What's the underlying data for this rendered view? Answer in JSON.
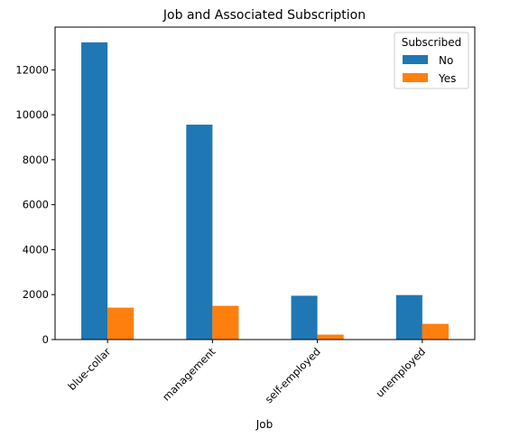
{
  "chart_data": {
    "type": "bar",
    "title": "Job and Associated Subscription",
    "xlabel": "Job",
    "ylabel": "",
    "categories": [
      "blue-collar",
      "management",
      "self-employed",
      "unemployed"
    ],
    "series": [
      {
        "name": "No",
        "color": "#1f77b4",
        "values": [
          13220,
          9560,
          1950,
          1980
        ]
      },
      {
        "name": "Yes",
        "color": "#ff7f0e",
        "values": [
          1420,
          1500,
          220,
          700
        ]
      }
    ],
    "ylim": [
      0,
      13900
    ],
    "yticks": [
      0,
      2000,
      4000,
      6000,
      8000,
      10000,
      12000
    ],
    "grid": false,
    "legend": {
      "title": "Subscribed",
      "placement": "top-right"
    },
    "xtick_rotation": 45
  }
}
